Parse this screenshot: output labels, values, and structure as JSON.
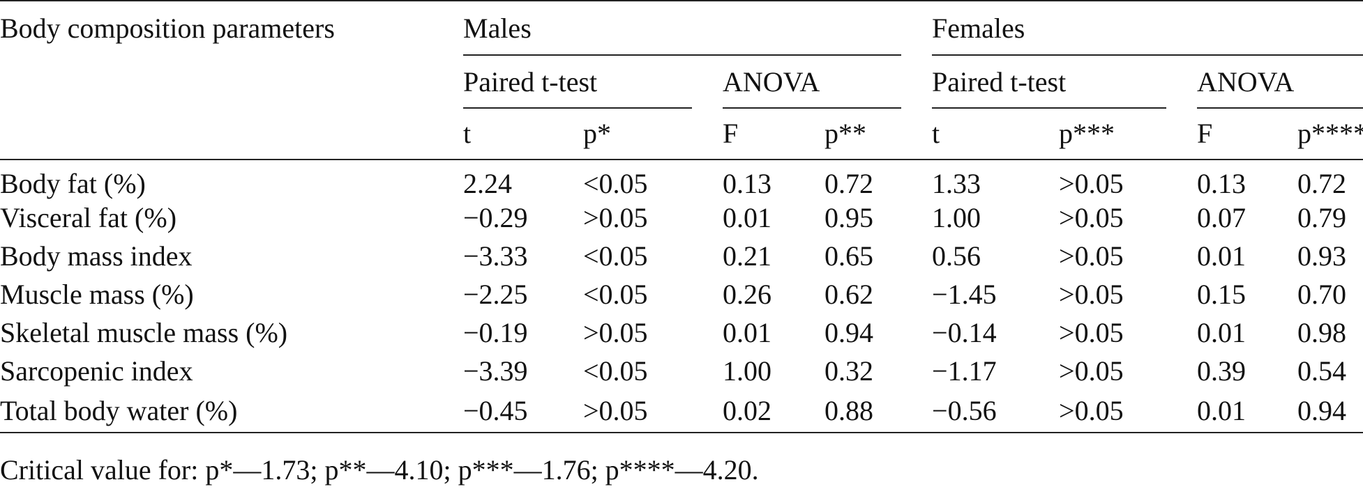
{
  "table": {
    "header": {
      "first_col": "Body composition parameters",
      "males": "Males",
      "females": "Females",
      "paired_t_test": "Paired t-test",
      "anova": "ANOVA",
      "cols": [
        "t",
        "p*",
        "F",
        "p**",
        "t",
        "p***",
        "F",
        "p****"
      ]
    },
    "rows": [
      {
        "label": "Body fat (%)",
        "values": [
          "2.24",
          "<0.05",
          "0.13",
          "0.72",
          "1.33",
          ">0.05",
          "0.13",
          "0.72"
        ]
      },
      {
        "label": "Visceral fat (%)",
        "values": [
          "−0.29",
          ">0.05",
          "0.01",
          "0.95",
          "1.00",
          ">0.05",
          "0.07",
          "0.79"
        ]
      },
      {
        "label": "Body mass index",
        "values": [
          "−3.33",
          "<0.05",
          "0.21",
          "0.65",
          "0.56",
          ">0.05",
          "0.01",
          "0.93"
        ]
      },
      {
        "label": "Muscle mass (%)",
        "values": [
          "−2.25",
          "<0.05",
          "0.26",
          "0.62",
          "−1.45",
          ">0.05",
          "0.15",
          "0.70"
        ]
      },
      {
        "label": "Skeletal muscle mass (%)",
        "values": [
          "−0.19",
          ">0.05",
          "0.01",
          "0.94",
          "−0.14",
          ">0.05",
          "0.01",
          "0.98"
        ]
      },
      {
        "label": "Sarcopenic index",
        "values": [
          "−3.39",
          "<0.05",
          "1.00",
          "0.32",
          "−1.17",
          ">0.05",
          "0.39",
          "0.54"
        ]
      },
      {
        "label": "Total body water (%)",
        "values": [
          "−0.45",
          ">0.05",
          "0.02",
          "0.88",
          "−0.56",
          ">0.05",
          "0.01",
          "0.94"
        ]
      }
    ],
    "footnote": "Critical value for: p*—1.73; p**—4.10; p***—1.76; p****—4.20."
  }
}
